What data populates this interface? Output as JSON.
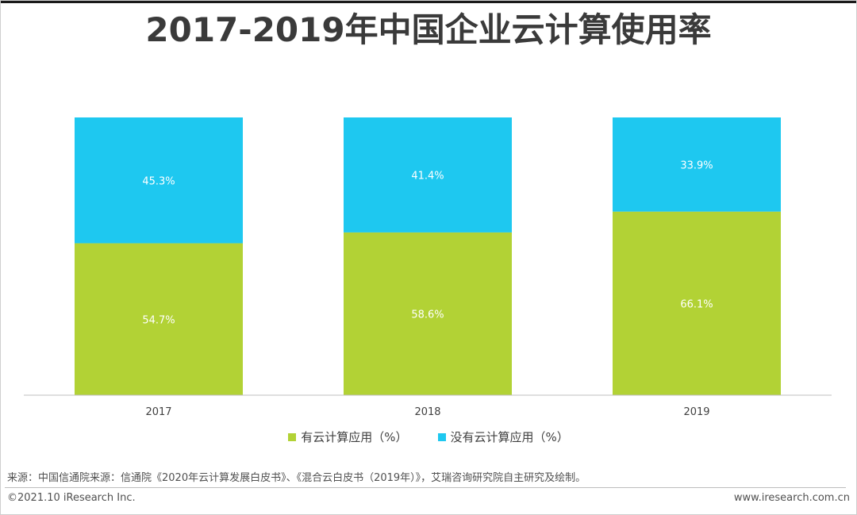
{
  "title": "2017-2019年中国企业云计算使用率",
  "colors": {
    "series_used": "#b2d235",
    "series_not_used": "#1ec8f0",
    "axis": "#bfbfbf",
    "label_inside": "#ffffff"
  },
  "chart_data": {
    "type": "bar",
    "stacked": true,
    "categories": [
      "2017",
      "2018",
      "2019"
    ],
    "series": [
      {
        "name": "有云计算应用（%）",
        "values": [
          54.7,
          58.6,
          66.1
        ],
        "labels": [
          "54.7%",
          "58.6%",
          "66.1%"
        ]
      },
      {
        "name": "没有云计算应用（%）",
        "values": [
          45.3,
          41.4,
          33.9
        ],
        "labels": [
          "45.3%",
          "41.4%",
          "33.9%"
        ]
      }
    ],
    "ylim": [
      0,
      100
    ],
    "grid": false,
    "legend_position": "bottom"
  },
  "legend": [
    {
      "label": "有云计算应用（%）"
    },
    {
      "label": "没有云计算应用（%）"
    }
  ],
  "source": "来源：中国信通院来源：信通院《2020年云计算发展白皮书》、《混合云白皮书（2019年）》，艾瑞咨询研究院自主研究及绘制。",
  "footer": {
    "copyright": "©2021.10 iResearch Inc.",
    "website": "www.iresearch.com.cn"
  }
}
